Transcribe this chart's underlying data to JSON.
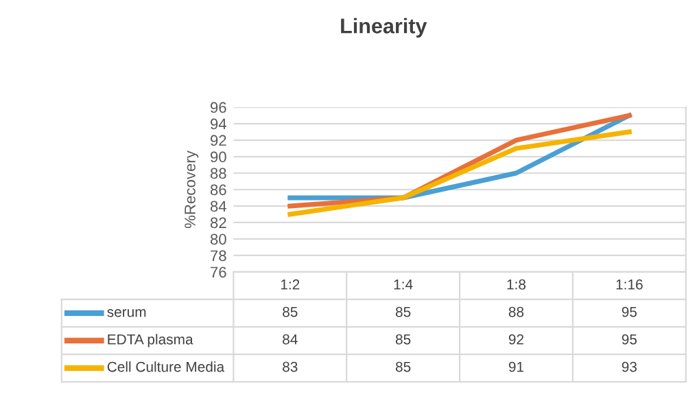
{
  "chart_data": {
    "type": "line",
    "title": "Linearity",
    "ylabel": "%Recovery",
    "categories": [
      "1:2",
      "1:4",
      "1:8",
      "1:16"
    ],
    "series": [
      {
        "name": "serum",
        "color": "#4a9fd4",
        "values": [
          85,
          85,
          88,
          95
        ]
      },
      {
        "name": "EDTA plasma",
        "color": "#e8703a",
        "values": [
          84,
          85,
          92,
          95
        ]
      },
      {
        "name": "Cell Culture Media",
        "color": "#f5b400",
        "values": [
          83,
          85,
          91,
          93
        ]
      }
    ],
    "ylim": [
      76,
      96
    ],
    "yticks": [
      76,
      78,
      80,
      82,
      84,
      86,
      88,
      90,
      92,
      94,
      96
    ],
    "grid": "y",
    "data_labels": true,
    "legend": "bottom left"
  }
}
